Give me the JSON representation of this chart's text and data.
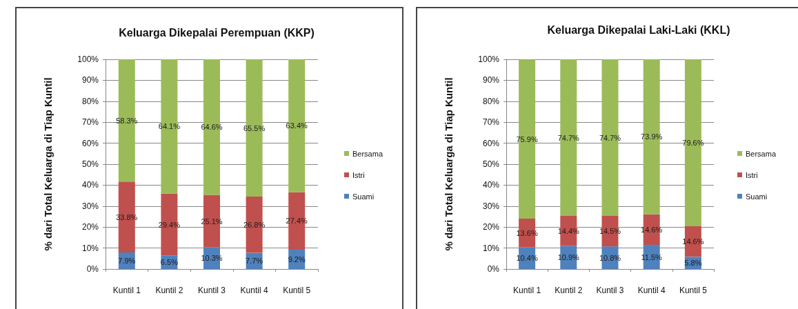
{
  "chart_data": [
    {
      "type": "bar",
      "stacked": true,
      "title": "Keluarga Dikepalai Perempuan (KKP)",
      "ylabel": "% dari Total Keluarga di Tiap Kuntil",
      "categories": [
        "Kuntil 1",
        "Kuntil 2",
        "Kuntil 3",
        "Kuntil 4",
        "Kuntil 5"
      ],
      "series": [
        {
          "name": "Suami",
          "color": "#4f81bd",
          "values": [
            7.9,
            6.5,
            10.3,
            7.7,
            9.2
          ],
          "value_labels": [
            "7.9%",
            "6.5%",
            "10.3%",
            "7.7%",
            "9.2%"
          ]
        },
        {
          "name": "Istri",
          "color": "#c0504d",
          "values": [
            33.8,
            29.4,
            25.1,
            26.8,
            27.4
          ],
          "value_labels": [
            "33.8%",
            "29.4%",
            "25.1%",
            "26.8%",
            "27.4%"
          ]
        },
        {
          "name": "Bersama",
          "color": "#9bbb59",
          "values": [
            58.3,
            64.1,
            64.6,
            65.5,
            63.4
          ],
          "value_labels": [
            "58.3%",
            "64.1%",
            "64.6%",
            "65.5%",
            "63.4%"
          ]
        }
      ],
      "ylim": [
        0,
        100
      ],
      "yticks": [
        {
          "value": 0,
          "label": "0%"
        },
        {
          "value": 10,
          "label": "10%"
        },
        {
          "value": 20,
          "label": "20%"
        },
        {
          "value": 30,
          "label": "30%"
        },
        {
          "value": 40,
          "label": "40%"
        },
        {
          "value": 50,
          "label": "50%"
        },
        {
          "value": 60,
          "label": "60%"
        },
        {
          "value": 70,
          "label": "70%"
        },
        {
          "value": 80,
          "label": "80%"
        },
        {
          "value": 90,
          "label": "90%"
        },
        {
          "value": 100,
          "label": "100%"
        }
      ],
      "grid": "y",
      "legend": "right"
    },
    {
      "type": "bar",
      "stacked": true,
      "title": "Keluarga Dikepalai Laki-Laki (KKL)",
      "ylabel": "% dari Total Keluarga di Tiap Kuntil",
      "categories": [
        "Kuntil 1",
        "Kuntil 2",
        "Kuntil 3",
        "Kuntil 4",
        "Kuntil 5"
      ],
      "series": [
        {
          "name": "Suami",
          "color": "#4f81bd",
          "values": [
            10.4,
            10.9,
            10.8,
            11.5,
            5.8
          ],
          "value_labels": [
            "10.4%",
            "10.9%",
            "10.8%",
            "11.5%",
            "5.8%"
          ]
        },
        {
          "name": "Istri",
          "color": "#c0504d",
          "values": [
            13.6,
            14.4,
            14.5,
            14.6,
            14.6
          ],
          "value_labels": [
            "13.6%",
            "14.4%",
            "14.5%",
            "14.6%",
            "14.6%"
          ]
        },
        {
          "name": "Bersama",
          "color": "#9bbb59",
          "values": [
            75.9,
            74.7,
            74.7,
            73.9,
            79.6
          ],
          "value_labels": [
            "75.9%",
            "74.7%",
            "74.7%",
            "73.9%",
            "79.6%"
          ]
        }
      ],
      "ylim": [
        0,
        100
      ],
      "yticks": [
        {
          "value": 0,
          "label": "0%"
        },
        {
          "value": 10,
          "label": "10%"
        },
        {
          "value": 20,
          "label": "20%"
        },
        {
          "value": 30,
          "label": "30%"
        },
        {
          "value": 40,
          "label": "40%"
        },
        {
          "value": 50,
          "label": "50%"
        },
        {
          "value": 60,
          "label": "60%"
        },
        {
          "value": 70,
          "label": "70%"
        },
        {
          "value": 80,
          "label": "80%"
        },
        {
          "value": 90,
          "label": "90%"
        },
        {
          "value": 100,
          "label": "100%"
        }
      ],
      "grid": "y",
      "legend": "right"
    }
  ]
}
